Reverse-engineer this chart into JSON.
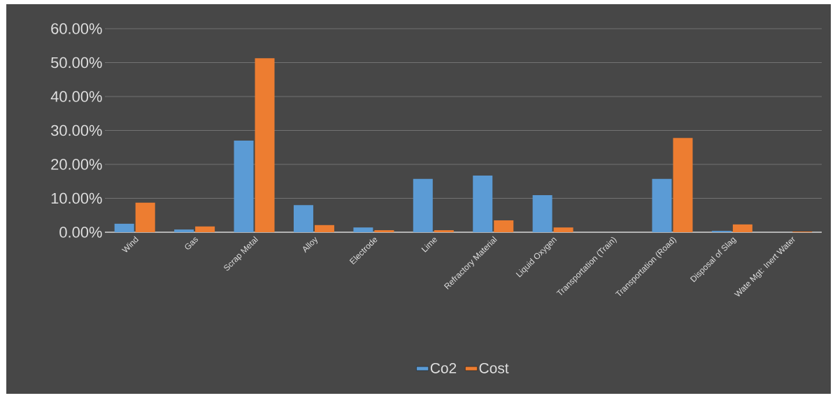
{
  "chart_data": {
    "type": "bar",
    "categories": [
      "Wind",
      "Gas",
      "Scrap Metal",
      "Alloy",
      "Electrode",
      "Lime",
      "Refractory Material",
      "Liquid Oxygen",
      "Transportation (Train)",
      "Transportation (Road)",
      "Disposal of Slag",
      "Wate Mgt: Inert Water"
    ],
    "series": [
      {
        "name": "Co2",
        "color": "#5b9bd5",
        "values": [
          2.5,
          0.8,
          27.0,
          8.0,
          1.4,
          15.7,
          16.7,
          10.9,
          0,
          15.7,
          0.4,
          0
        ]
      },
      {
        "name": "Cost",
        "color": "#ed7d31",
        "values": [
          8.7,
          1.7,
          51.3,
          2.1,
          0.6,
          0.6,
          3.5,
          1.4,
          0,
          27.8,
          2.3,
          0.2
        ]
      }
    ],
    "ylim": [
      0,
      60
    ],
    "yticks": [
      {
        "value": 0,
        "label": "0.00%"
      },
      {
        "value": 10,
        "label": "10.00%"
      },
      {
        "value": 20,
        "label": "20.00%"
      },
      {
        "value": 30,
        "label": "30.00%"
      },
      {
        "value": 40,
        "label": "40.00%"
      },
      {
        "value": 50,
        "label": "50.00%"
      },
      {
        "value": 60,
        "label": "60.00%"
      }
    ],
    "grid": "y",
    "legend": "bottom"
  }
}
